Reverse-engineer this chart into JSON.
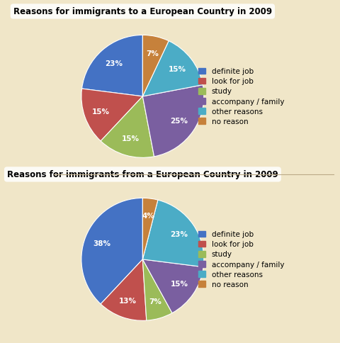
{
  "chart1": {
    "title": "Reasons for immigrants to a European Country in 2009",
    "labels": [
      "definite job",
      "look for job",
      "study",
      "accompany / family",
      "other reasons",
      "no reason"
    ],
    "values": [
      23,
      15,
      15,
      25,
      15,
      7
    ],
    "colors": [
      "#4472c4",
      "#c0504d",
      "#9bbb59",
      "#7a5fa0",
      "#4bacc6",
      "#c6813b"
    ],
    "startangle": 90
  },
  "chart2": {
    "title": "Reasons for immigrants from a European Country in 2009",
    "labels": [
      "definite job",
      "look for job",
      "study",
      "accompany / family",
      "other reasons",
      "no reason"
    ],
    "values": [
      38,
      13,
      7,
      15,
      23,
      4
    ],
    "colors": [
      "#4472c4",
      "#c0504d",
      "#9bbb59",
      "#7a5fa0",
      "#4bacc6",
      "#c6813b"
    ],
    "startangle": 90
  },
  "bg_color": "#f0e6c8",
  "legend_fontsize": 7.5,
  "label_fontsize": 7.5,
  "title_fontsize": 8.5
}
